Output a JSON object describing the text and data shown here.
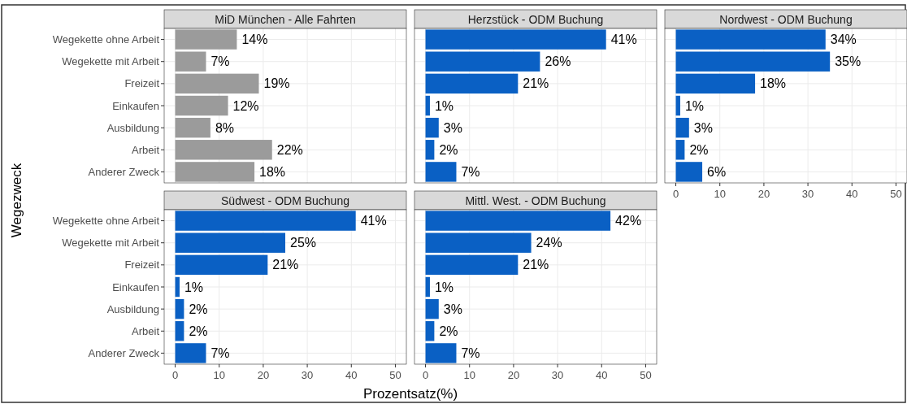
{
  "chart_data": [
    {
      "type": "bar",
      "orientation": "horizontal",
      "title": "MiD München - Alle Fahrten",
      "ylabel": "Wegezweck",
      "categories": [
        "Wegekette ohne Arbeit",
        "Wegekette mit Arbeit",
        "Freizeit",
        "Einkaufen",
        "Ausbildung",
        "Arbeit",
        "Anderer Zweck"
      ],
      "values": [
        14,
        7,
        19,
        12,
        8,
        22,
        18
      ],
      "value_labels": [
        "14%",
        "7%",
        "19%",
        "12%",
        "8%",
        "22%",
        "18%"
      ],
      "color": "#9b9b9b",
      "xlim": [
        -2.5,
        52.5
      ],
      "xticks": [
        0,
        10,
        20,
        30,
        40,
        50
      ],
      "tick_labels": "y",
      "grid": true
    },
    {
      "type": "bar",
      "orientation": "horizontal",
      "title": "Herzstück - ODM Buchung",
      "categories": [
        null,
        null,
        null,
        null,
        null,
        null,
        null
      ],
      "values": [
        41,
        26,
        21,
        1,
        3,
        2,
        7
      ],
      "value_labels": [
        "41%",
        "26%",
        "21%",
        "1%",
        "3%",
        "2%",
        "7%"
      ],
      "color": "#0a60c4",
      "xlim": [
        -2.5,
        52.5
      ],
      "xticks": [
        0,
        10,
        20,
        30,
        40,
        50
      ],
      "tick_labels": false,
      "grid": true
    },
    {
      "type": "bar",
      "orientation": "horizontal",
      "title": "Nordwest - ODM Buchung",
      "categories": [
        null,
        null,
        null,
        null,
        null,
        null,
        null
      ],
      "values": [
        34,
        35,
        18,
        1,
        3,
        2,
        6
      ],
      "value_labels": [
        "34%",
        "35%",
        "18%",
        "1%",
        "3%",
        "2%",
        "6%"
      ],
      "color": "#0a60c4",
      "xlim": [
        -2.5,
        52.5
      ],
      "xticks": [
        0,
        10,
        20,
        30,
        40,
        50
      ],
      "tick_labels": "x",
      "grid": true
    },
    {
      "type": "bar",
      "orientation": "horizontal",
      "title": "Südwest - ODM Buchung",
      "categories": [
        "Wegekette ohne Arbeit",
        "Wegekette mit Arbeit",
        "Freizeit",
        "Einkaufen",
        "Ausbildung",
        "Arbeit",
        "Anderer Zweck"
      ],
      "values": [
        41,
        25,
        21,
        1,
        2,
        2,
        7
      ],
      "value_labels": [
        "41%",
        "25%",
        "21%",
        "1%",
        "2%",
        "2%",
        "7%"
      ],
      "color": "#0a60c4",
      "xlim": [
        -2.5,
        52.5
      ],
      "xticks": [
        0,
        10,
        20,
        30,
        40,
        50
      ],
      "grid": true
    },
    {
      "type": "bar",
      "orientation": "horizontal",
      "title": "Mittl. West. - ODM Buchung",
      "xlabel": "Prozentsatz(%)",
      "categories": [
        null,
        null,
        null,
        null,
        null,
        null,
        null
      ],
      "values": [
        42,
        24,
        21,
        1,
        3,
        2,
        7
      ],
      "value_labels": [
        "42%",
        "24%",
        "21%",
        "1%",
        "3%",
        "2%",
        "7%"
      ],
      "color": "#0a60c4",
      "xlim": [
        -2.5,
        52.5
      ],
      "xticks": [
        0,
        10,
        20,
        30,
        40,
        50
      ],
      "tick_labels": "x",
      "grid": true
    }
  ]
}
